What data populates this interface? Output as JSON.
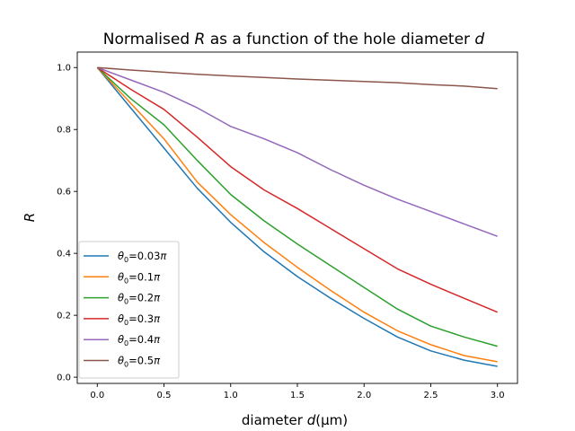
{
  "chart_data": {
    "type": "line",
    "title_prefix": "Normalised ",
    "title_var": "R",
    "title_middle": " as a function of the hole diameter ",
    "title_var2": "d",
    "xlabel_prefix": "diameter ",
    "xlabel_var": "d",
    "xlabel_unit": "(μm)",
    "ylabel": "R",
    "xlim": [
      -0.15,
      3.15
    ],
    "ylim": [
      -0.02,
      1.05
    ],
    "xticks": [
      0.0,
      0.5,
      1.0,
      1.5,
      2.0,
      2.5,
      3.0
    ],
    "xtick_labels": [
      "0.0",
      "0.5",
      "1.0",
      "1.5",
      "2.0",
      "2.5",
      "3.0"
    ],
    "yticks": [
      0.0,
      0.2,
      0.4,
      0.6,
      0.8,
      1.0
    ],
    "ytick_labels": [
      "0.0",
      "0.2",
      "0.4",
      "0.6",
      "0.8",
      "1.0"
    ],
    "grid": false,
    "legend_position": "lower-left",
    "x": [
      0.0,
      0.25,
      0.5,
      0.75,
      1.0,
      1.25,
      1.5,
      1.75,
      2.0,
      2.25,
      2.5,
      2.75,
      3.0
    ],
    "series": [
      {
        "label": "θ₀=0.03π",
        "sym": "θ",
        "sub": "0",
        "val": "=0.03",
        "pi": "π",
        "color": "#1f77b4",
        "values": [
          1.0,
          0.87,
          0.74,
          0.61,
          0.5,
          0.405,
          0.325,
          0.255,
          0.19,
          0.13,
          0.085,
          0.055,
          0.035
        ]
      },
      {
        "label": "θ₀=0.1π",
        "sym": "θ",
        "sub": "0",
        "val": "=0.1",
        "pi": "π",
        "color": "#ff7f0e",
        "values": [
          1.0,
          0.885,
          0.77,
          0.63,
          0.525,
          0.435,
          0.355,
          0.28,
          0.21,
          0.15,
          0.105,
          0.07,
          0.05
        ]
      },
      {
        "label": "θ₀=0.2π",
        "sym": "θ",
        "sub": "0",
        "val": "=0.2",
        "pi": "π",
        "color": "#2ca02c",
        "values": [
          1.0,
          0.9,
          0.815,
          0.7,
          0.59,
          0.505,
          0.43,
          0.36,
          0.29,
          0.22,
          0.165,
          0.13,
          0.1
        ]
      },
      {
        "label": "θ₀=0.3π",
        "sym": "θ",
        "sub": "0",
        "val": "=0.3",
        "pi": "π",
        "color": "#d62728",
        "values": [
          1.0,
          0.93,
          0.865,
          0.775,
          0.68,
          0.605,
          0.545,
          0.48,
          0.415,
          0.35,
          0.3,
          0.255,
          0.21
        ]
      },
      {
        "label": "θ₀=0.4π",
        "sym": "θ",
        "sub": "0",
        "val": "=0.4",
        "pi": "π",
        "color": "#9467bd",
        "values": [
          1.0,
          0.96,
          0.92,
          0.87,
          0.81,
          0.77,
          0.725,
          0.67,
          0.62,
          0.575,
          0.535,
          0.495,
          0.455
        ]
      },
      {
        "label": "θ₀=0.5π",
        "sym": "θ",
        "sub": "0",
        "val": "=0.5",
        "pi": "π",
        "color": "#8c564b",
        "values": [
          1.0,
          0.992,
          0.985,
          0.978,
          0.973,
          0.968,
          0.963,
          0.959,
          0.955,
          0.951,
          0.945,
          0.94,
          0.932
        ]
      }
    ]
  }
}
